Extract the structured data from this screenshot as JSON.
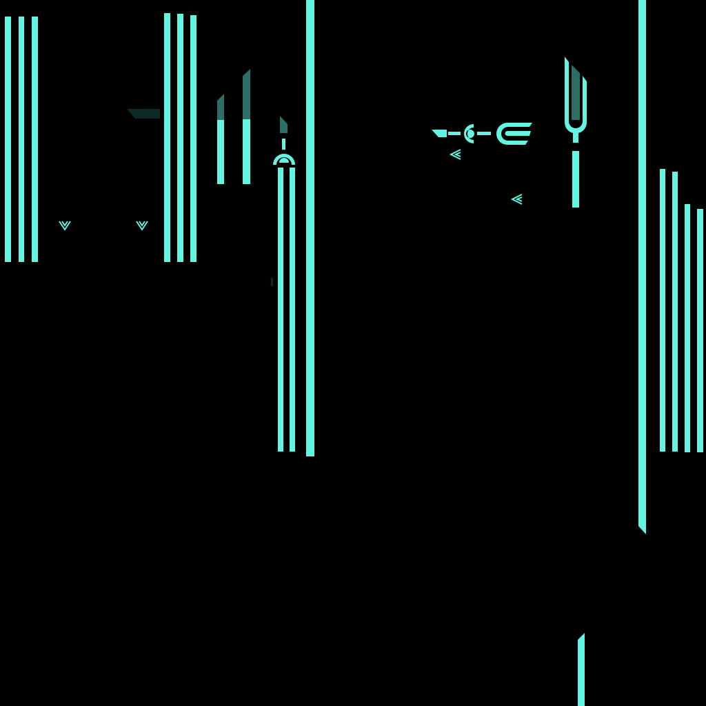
{
  "palette": {
    "background": "#000000",
    "neon": "#63F5E2",
    "neon_dim": "#3FBFB0",
    "neon_faded": "#2A6E66",
    "shadow": "#0E2A27"
  },
  "texture": {
    "kind": "neon-trim-sprite-atlas",
    "glyphs": [
      "chevron-down-icon",
      "chevron-left-icon",
      "arch-connector-icon",
      "tuning-fork-icon",
      "coupler-icon",
      "gripper-claw-icon"
    ]
  }
}
